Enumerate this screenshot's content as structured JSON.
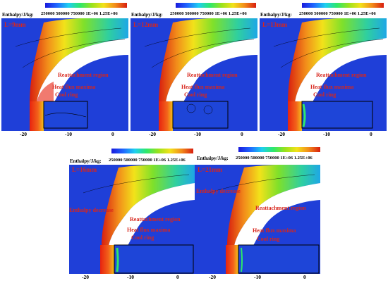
{
  "colorbar": {
    "title": "Enthalpy/J/kg:",
    "ticks": "250000  500000  750000  1E+06 1.25E+06"
  },
  "panels": [
    {
      "id": "a",
      "label": "L=9mm",
      "annotations": {
        "reattachment": "Reattachment region",
        "heat_flux": "Heat flux maxima",
        "cool_ring": "Cool ring"
      },
      "x_ticks": [
        "-20",
        "-10",
        "0"
      ]
    },
    {
      "id": "b",
      "label": "L=12mm",
      "annotations": {
        "reattachment": "Reattachment region",
        "heat_flux": "Heat flux maxima",
        "cool_ring": "Cool ring"
      },
      "x_ticks": [
        "-20",
        "-10",
        "0"
      ]
    },
    {
      "id": "c",
      "label": "L=13mm",
      "annotations": {
        "reattachment": "Reattachment region",
        "heat_flux": "Heat flux maxima",
        "cool_ring": "Cool ring"
      },
      "x_ticks": [
        "-20",
        "-10",
        "0"
      ]
    },
    {
      "id": "d",
      "label": "L=16mm",
      "annotations": {
        "enthalpy": "Enthalpy decrease",
        "reattachment": "Reattachment region",
        "heat_flux": "Heat flux maxima",
        "cool_ring": "Cool ring"
      },
      "x_ticks": [
        "-20",
        "-10",
        "0"
      ]
    },
    {
      "id": "e",
      "label": "L=21mm",
      "annotations": {
        "enthalpy": "Enthalpy decrease",
        "reattachment": "Reattachment region",
        "heat_flux": "Heat flux maxima",
        "cool_ring": "Cool ring"
      },
      "x_ticks": [
        "-20",
        "-10",
        "0"
      ]
    }
  ]
}
